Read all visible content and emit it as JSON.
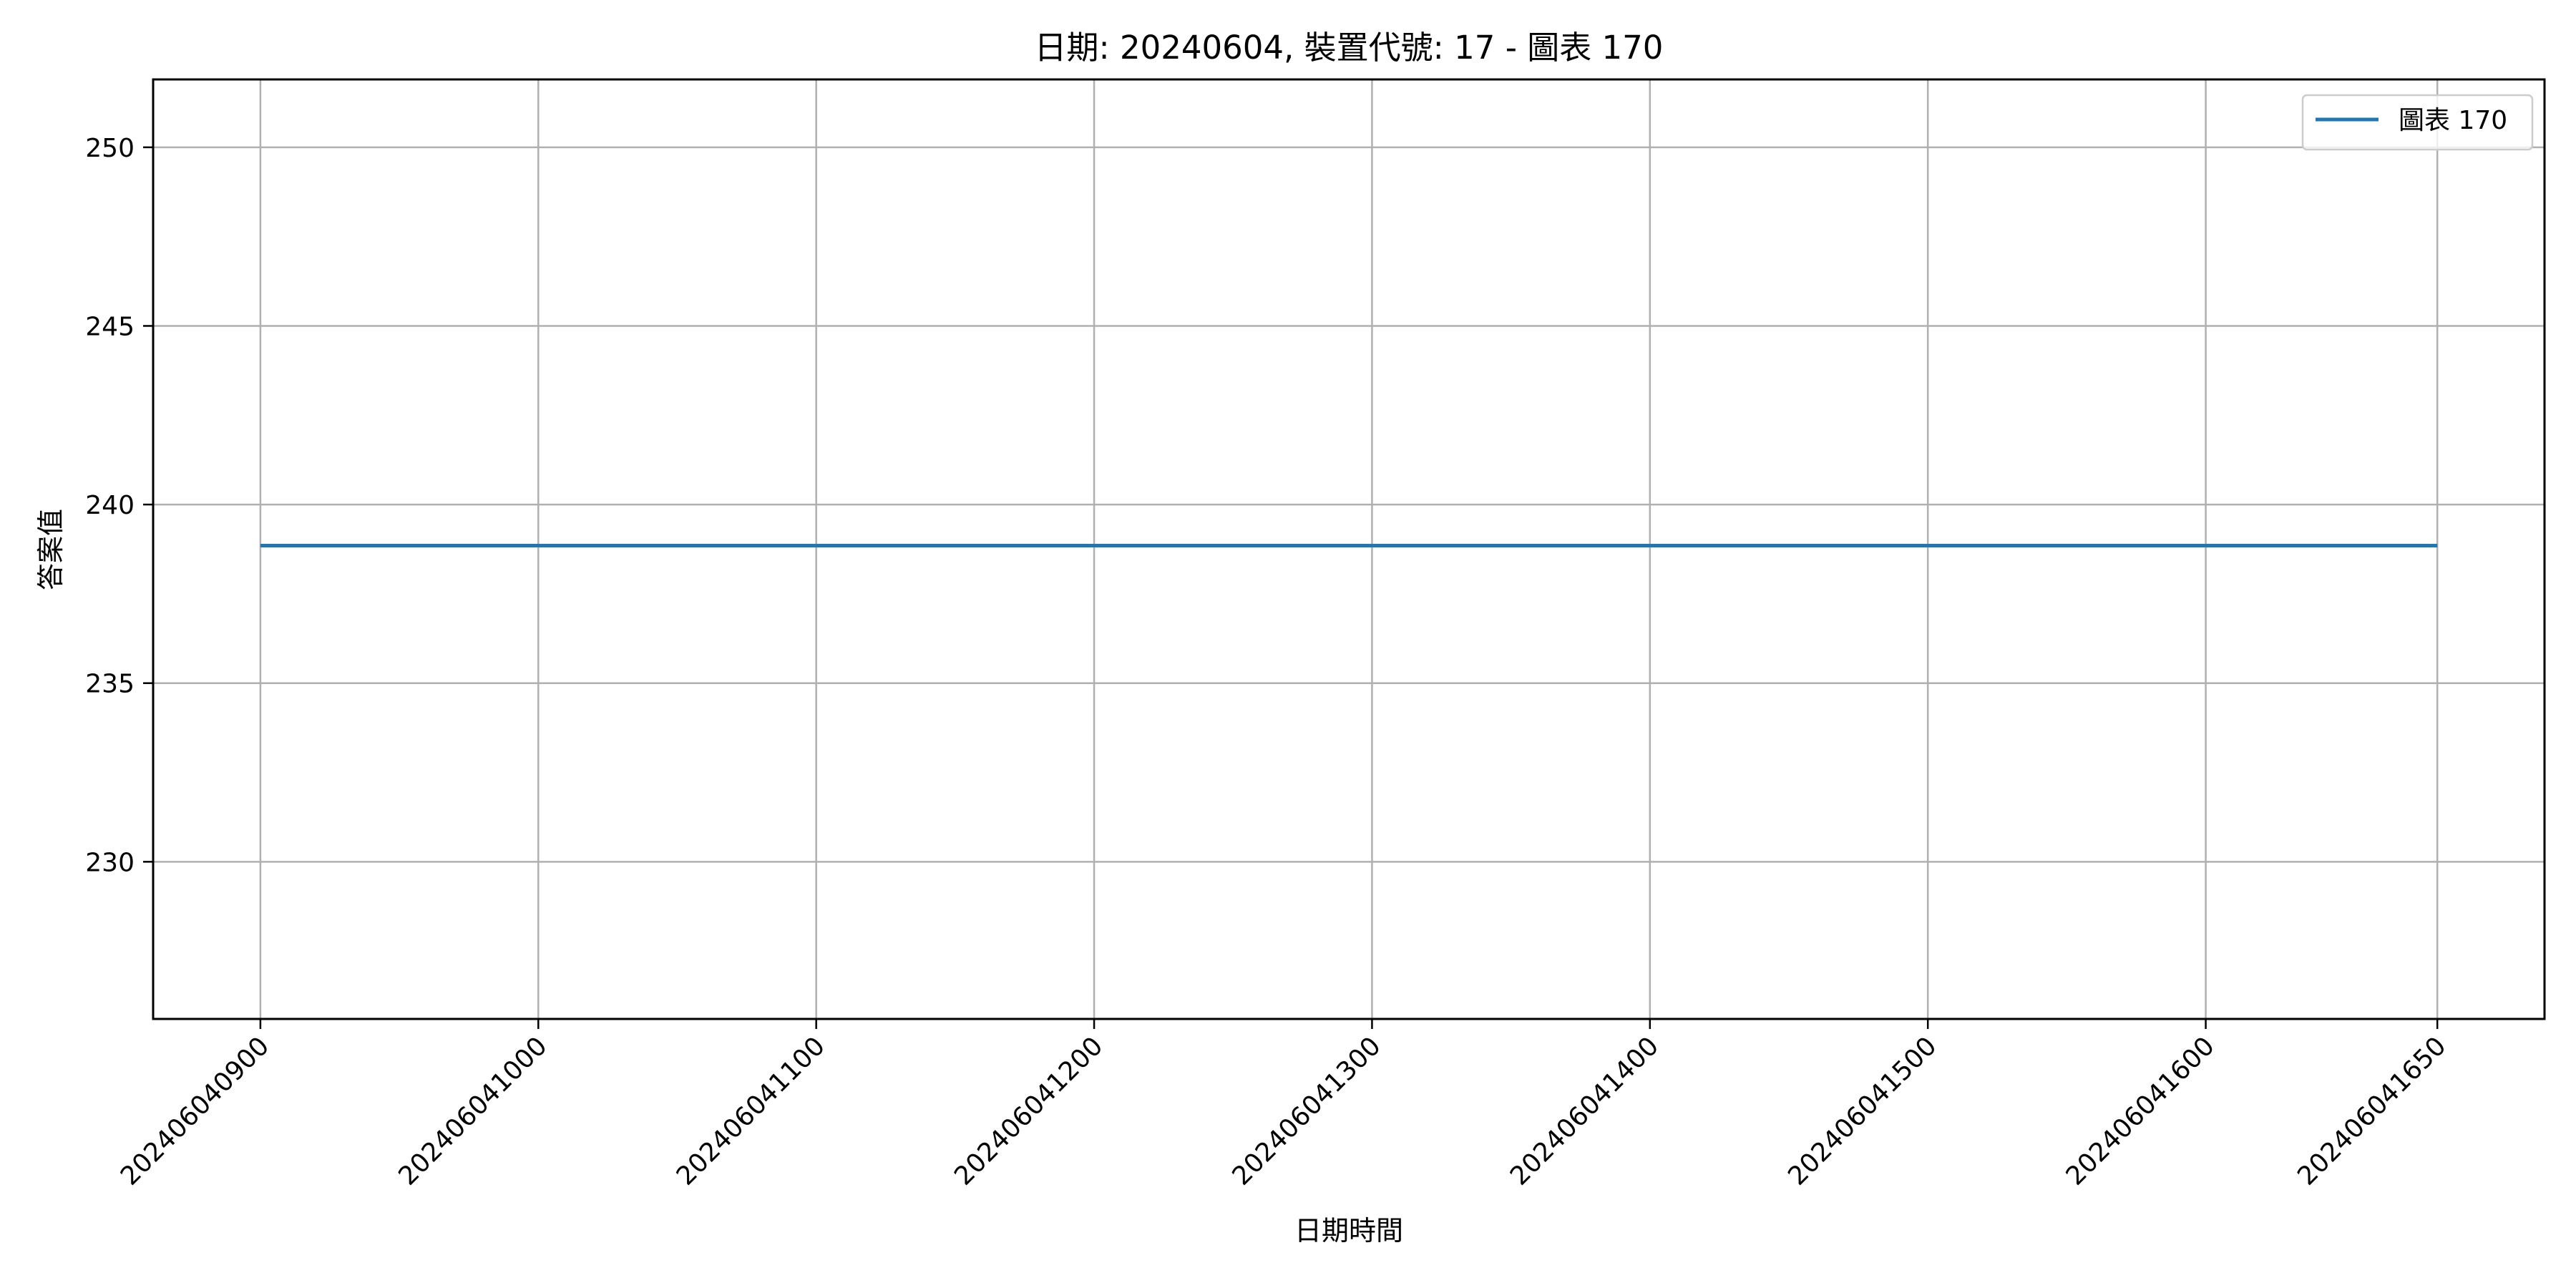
{
  "chart_data": {
    "type": "line",
    "title": "日期: 20240604, 裝置代號: 17 - 圖表 170",
    "xlabel": "日期時間",
    "ylabel": "答案值",
    "x": [
      "202406040900",
      "202406041000",
      "202406041100",
      "202406041200",
      "202406041300",
      "202406041400",
      "202406041500",
      "202406041600",
      "202406041650"
    ],
    "x_hours": [
      9.0,
      10.0,
      11.0,
      12.0,
      13.0,
      14.0,
      15.0,
      16.0,
      16.8333
    ],
    "series": [
      {
        "name": "圖表 170",
        "color": "#1f77b4",
        "values": [
          238.85,
          238.85,
          238.85,
          238.85,
          238.85,
          238.85,
          238.85,
          238.85,
          238.85
        ]
      }
    ],
    "ylim": [
      225.6,
      251.9
    ],
    "yticks": [
      230,
      235,
      240,
      245,
      250
    ],
    "grid": true,
    "legend": "top-right"
  }
}
